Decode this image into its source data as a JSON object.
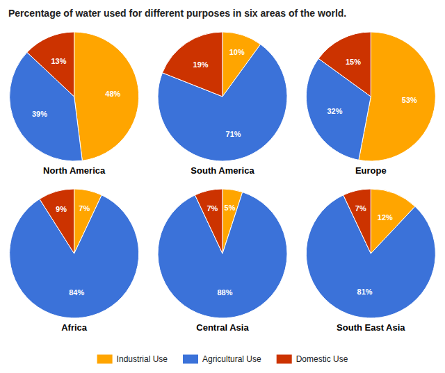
{
  "chart_data": {
    "type": "pie",
    "title": "Percentage of water used for different purposes in six areas of the world.",
    "categories": [
      "Industrial Use",
      "Agricultural Use",
      "Domestic Use"
    ],
    "colors": [
      "#FFA500",
      "#3B72D9",
      "#CC3300"
    ],
    "series": [
      {
        "name": "North America",
        "values": [
          48,
          39,
          13
        ],
        "value_labels": [
          "48%",
          "39%",
          "13%"
        ]
      },
      {
        "name": "South America",
        "values": [
          10,
          71,
          19
        ],
        "value_labels": [
          "10%",
          "71%",
          "19%"
        ]
      },
      {
        "name": "Europe",
        "values": [
          53,
          32,
          15
        ],
        "value_labels": [
          "53%",
          "32%",
          "15%"
        ]
      },
      {
        "name": "Africa",
        "values": [
          7,
          84,
          9
        ],
        "value_labels": [
          "7%",
          "84%",
          "9%"
        ]
      },
      {
        "name": "Central Asia",
        "values": [
          5,
          88,
          7
        ],
        "value_labels": [
          "5%",
          "88%",
          "7%"
        ]
      },
      {
        "name": "South East Asia",
        "values": [
          12,
          81,
          7
        ],
        "value_labels": [
          "12%",
          "81%",
          "7%"
        ]
      }
    ],
    "data_labels": true,
    "legend": "bottom"
  }
}
